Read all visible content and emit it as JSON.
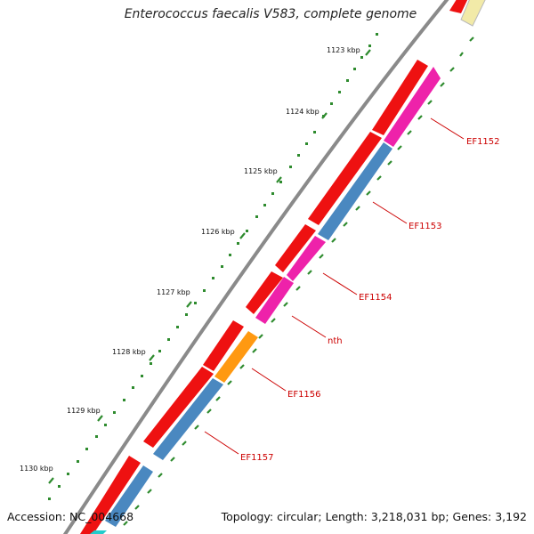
{
  "title": "Enterococcus faecalis V583, complete genome",
  "accession": "Accession: NC_004668",
  "summary": "Topology: circular; Length: 3,218,031 bp; Genes: 3,192",
  "colors": {
    "backbone": "#8a8a8a",
    "cds": "#ee1111",
    "feature_pink": "#ee22aa",
    "feature_blue": "#4a88c0",
    "feature_orange": "#ff9911",
    "feature_pale": "#f2eaa8",
    "feature_cyan": "#22cccc",
    "gc_track": "#2e8b2e",
    "label": "#cc0000"
  },
  "ticks": [
    {
      "label": "1123 kbp"
    },
    {
      "label": "1124 kbp"
    },
    {
      "label": "1125 kbp"
    },
    {
      "label": "1126 kbp"
    },
    {
      "label": "1127 kbp"
    },
    {
      "label": "1128 kbp"
    },
    {
      "label": "1129 kbp"
    },
    {
      "label": "1130 kbp"
    }
  ],
  "genes": [
    {
      "name": "EF1152"
    },
    {
      "name": "EF1153"
    },
    {
      "name": "EF1154"
    },
    {
      "name": "nth"
    },
    {
      "name": "EF1156"
    },
    {
      "name": "EF1157"
    }
  ]
}
